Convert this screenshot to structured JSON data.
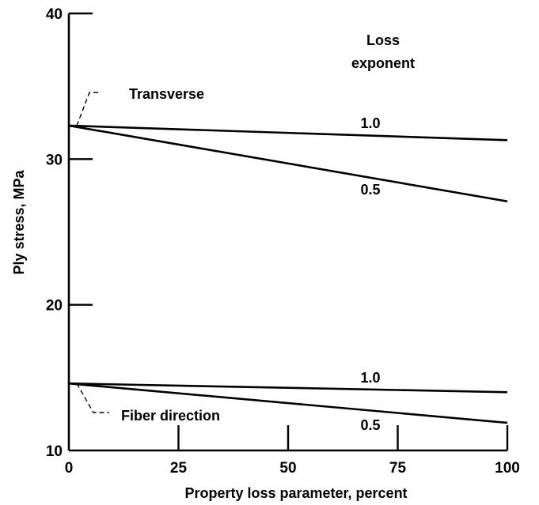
{
  "chart_data": {
    "type": "line",
    "title": "",
    "xlabel": "Property loss parameter, percent",
    "ylabel": "Ply stress, MPa",
    "xlim": [
      0,
      100
    ],
    "ylim": [
      10,
      40
    ],
    "x_ticks": [
      0,
      25,
      50,
      75,
      100
    ],
    "y_ticks": [
      10,
      20,
      30,
      40
    ],
    "grid": false,
    "legend_title": "Loss\nexponent",
    "groups": [
      {
        "label": "Transverse",
        "series": [
          {
            "name": "1.0",
            "x": [
              0,
              100
            ],
            "y": [
              32.3,
              31.3
            ]
          },
          {
            "name": "0.5",
            "x": [
              0,
              100
            ],
            "y": [
              32.3,
              27.1
            ]
          }
        ]
      },
      {
        "label": "Fiber direction",
        "series": [
          {
            "name": "1.0",
            "x": [
              0,
              100
            ],
            "y": [
              14.6,
              14.0
            ]
          },
          {
            "name": "0.5",
            "x": [
              0,
              100
            ],
            "y": [
              14.6,
              11.9
            ]
          }
        ]
      }
    ]
  }
}
